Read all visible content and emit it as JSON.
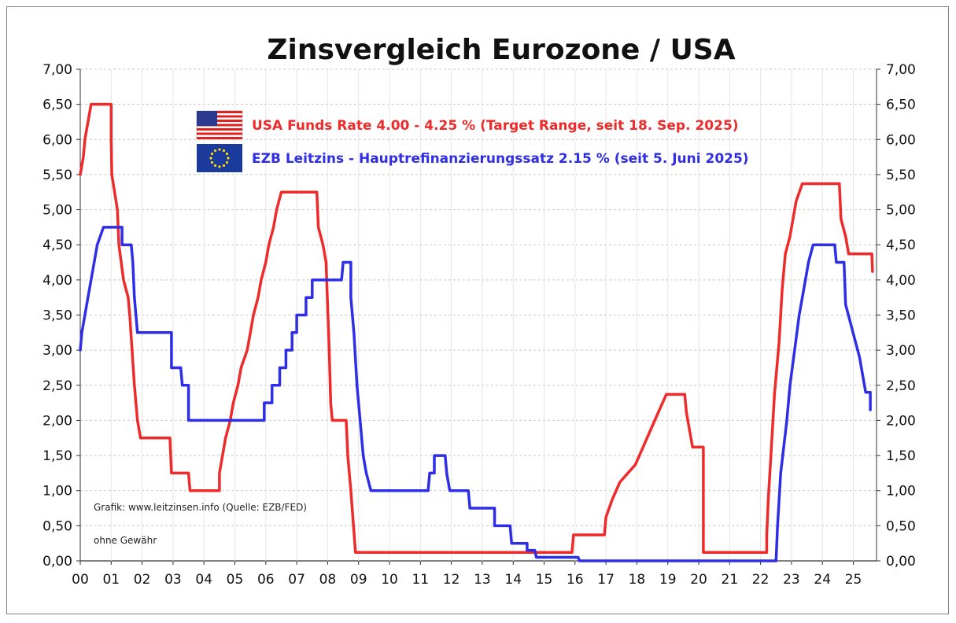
{
  "chart_data": {
    "type": "line",
    "title": "Zinsvergleich Eurozone / USA",
    "xlabel": "",
    "ylabel": "",
    "ylim": [
      0,
      7
    ],
    "xlim": [
      0,
      25.75
    ],
    "y_ticks": [
      "0,00",
      "0,50",
      "1,00",
      "1,50",
      "2,00",
      "2,50",
      "3,00",
      "3,50",
      "4,00",
      "4,50",
      "5,00",
      "5,50",
      "6,00",
      "6,50",
      "7,00"
    ],
    "x_ticks": [
      "00",
      "01",
      "02",
      "03",
      "04",
      "05",
      "06",
      "07",
      "08",
      "09",
      "10",
      "11",
      "12",
      "13",
      "14",
      "15",
      "16",
      "17",
      "18",
      "19",
      "20",
      "21",
      "22",
      "23",
      "24",
      "25"
    ],
    "grid": true,
    "legend_position": "top-center",
    "series": [
      {
        "name": "USA Funds Rate 4.00 - 4.25 % (Target Range, seit 18. Sep. 2025)",
        "color": "#ee2a2a",
        "icon": "us-flag-icon",
        "step_points": [
          [
            0.0,
            5.5
          ],
          [
            0.1,
            5.75
          ],
          [
            0.15,
            6.0
          ],
          [
            0.35,
            6.5
          ],
          [
            1.0,
            6.5
          ],
          [
            1.0,
            6.0
          ],
          [
            1.02,
            5.5
          ],
          [
            1.2,
            5.0
          ],
          [
            1.25,
            4.5
          ],
          [
            1.4,
            4.0
          ],
          [
            1.55,
            3.75
          ],
          [
            1.6,
            3.5
          ],
          [
            1.75,
            2.5
          ],
          [
            1.85,
            2.0
          ],
          [
            1.95,
            1.75
          ],
          [
            2.9,
            1.75
          ],
          [
            2.95,
            1.25
          ],
          [
            3.5,
            1.25
          ],
          [
            3.55,
            1.0
          ],
          [
            4.5,
            1.0
          ],
          [
            4.5,
            1.25
          ],
          [
            4.6,
            1.5
          ],
          [
            4.7,
            1.75
          ],
          [
            4.85,
            2.0
          ],
          [
            4.95,
            2.25
          ],
          [
            5.1,
            2.5
          ],
          [
            5.2,
            2.75
          ],
          [
            5.4,
            3.0
          ],
          [
            5.5,
            3.25
          ],
          [
            5.6,
            3.5
          ],
          [
            5.75,
            3.75
          ],
          [
            5.85,
            4.0
          ],
          [
            6.0,
            4.25
          ],
          [
            6.1,
            4.5
          ],
          [
            6.25,
            4.75
          ],
          [
            6.35,
            5.0
          ],
          [
            6.5,
            5.25
          ],
          [
            7.65,
            5.25
          ],
          [
            7.7,
            4.75
          ],
          [
            7.85,
            4.5
          ],
          [
            7.95,
            4.25
          ],
          [
            8.05,
            3.0
          ],
          [
            8.1,
            2.25
          ],
          [
            8.15,
            2.0
          ],
          [
            8.6,
            2.0
          ],
          [
            8.65,
            1.5
          ],
          [
            8.75,
            1.0
          ],
          [
            8.9,
            0.12
          ],
          [
            15.9,
            0.12
          ],
          [
            15.95,
            0.37
          ],
          [
            16.95,
            0.37
          ],
          [
            17.0,
            0.62
          ],
          [
            17.2,
            0.87
          ],
          [
            17.45,
            1.12
          ],
          [
            17.95,
            1.37
          ],
          [
            18.2,
            1.62
          ],
          [
            18.45,
            1.87
          ],
          [
            18.7,
            2.12
          ],
          [
            18.95,
            2.37
          ],
          [
            19.55,
            2.37
          ],
          [
            19.6,
            2.12
          ],
          [
            19.7,
            1.87
          ],
          [
            19.8,
            1.62
          ],
          [
            20.15,
            1.62
          ],
          [
            20.15,
            0.12
          ],
          [
            21.9,
            0.12
          ],
          [
            22.2,
            0.12
          ],
          [
            22.2,
            0.37
          ],
          [
            22.25,
            0.87
          ],
          [
            22.35,
            1.62
          ],
          [
            22.45,
            2.37
          ],
          [
            22.6,
            3.12
          ],
          [
            22.7,
            3.87
          ],
          [
            22.8,
            4.37
          ],
          [
            22.95,
            4.62
          ],
          [
            23.05,
            4.87
          ],
          [
            23.15,
            5.12
          ],
          [
            23.35,
            5.37
          ],
          [
            24.55,
            5.37
          ],
          [
            24.6,
            4.87
          ],
          [
            24.75,
            4.62
          ],
          [
            24.85,
            4.37
          ],
          [
            25.6,
            4.37
          ],
          [
            25.62,
            4.12
          ]
        ]
      },
      {
        "name": "EZB Leitzins - Hauptrefinanzierungssatz  2.15 % (seit 5. Juni 2025)",
        "color": "#2e2ee6",
        "icon": "eu-flag-icon",
        "step_points": [
          [
            0.0,
            3.0
          ],
          [
            0.05,
            3.25
          ],
          [
            0.15,
            3.5
          ],
          [
            0.25,
            3.75
          ],
          [
            0.45,
            4.25
          ],
          [
            0.55,
            4.5
          ],
          [
            0.75,
            4.75
          ],
          [
            1.35,
            4.75
          ],
          [
            1.35,
            4.5
          ],
          [
            1.65,
            4.5
          ],
          [
            1.7,
            4.25
          ],
          [
            1.75,
            3.75
          ],
          [
            1.85,
            3.25
          ],
          [
            2.95,
            3.25
          ],
          [
            2.95,
            2.75
          ],
          [
            3.25,
            2.75
          ],
          [
            3.3,
            2.5
          ],
          [
            3.5,
            2.5
          ],
          [
            3.5,
            2.0
          ],
          [
            5.95,
            2.0
          ],
          [
            5.95,
            2.25
          ],
          [
            6.2,
            2.25
          ],
          [
            6.2,
            2.5
          ],
          [
            6.45,
            2.5
          ],
          [
            6.45,
            2.75
          ],
          [
            6.65,
            2.75
          ],
          [
            6.65,
            3.0
          ],
          [
            6.85,
            3.0
          ],
          [
            6.85,
            3.25
          ],
          [
            7.0,
            3.25
          ],
          [
            7.0,
            3.5
          ],
          [
            7.3,
            3.5
          ],
          [
            7.3,
            3.75
          ],
          [
            7.5,
            3.75
          ],
          [
            7.5,
            4.0
          ],
          [
            8.45,
            4.0
          ],
          [
            8.5,
            4.25
          ],
          [
            8.75,
            4.25
          ],
          [
            8.75,
            3.75
          ],
          [
            8.85,
            3.25
          ],
          [
            8.95,
            2.5
          ],
          [
            9.05,
            2.0
          ],
          [
            9.15,
            1.5
          ],
          [
            9.25,
            1.25
          ],
          [
            9.4,
            1.0
          ],
          [
            11.25,
            1.0
          ],
          [
            11.3,
            1.25
          ],
          [
            11.45,
            1.25
          ],
          [
            11.45,
            1.5
          ],
          [
            11.8,
            1.5
          ],
          [
            11.85,
            1.25
          ],
          [
            11.95,
            1.0
          ],
          [
            12.55,
            1.0
          ],
          [
            12.6,
            0.75
          ],
          [
            13.4,
            0.75
          ],
          [
            13.4,
            0.5
          ],
          [
            13.9,
            0.5
          ],
          [
            13.95,
            0.25
          ],
          [
            14.45,
            0.25
          ],
          [
            14.45,
            0.15
          ],
          [
            14.7,
            0.15
          ],
          [
            14.75,
            0.05
          ],
          [
            16.1,
            0.05
          ],
          [
            16.15,
            0.0
          ],
          [
            22.5,
            0.0
          ],
          [
            22.55,
            0.5
          ],
          [
            22.65,
            1.25
          ],
          [
            22.85,
            2.0
          ],
          [
            22.95,
            2.5
          ],
          [
            23.1,
            3.0
          ],
          [
            23.25,
            3.5
          ],
          [
            23.35,
            3.75
          ],
          [
            23.45,
            4.0
          ],
          [
            23.55,
            4.25
          ],
          [
            23.7,
            4.5
          ],
          [
            24.4,
            4.5
          ],
          [
            24.45,
            4.25
          ],
          [
            24.7,
            4.25
          ],
          [
            24.75,
            3.65
          ],
          [
            24.9,
            3.4
          ],
          [
            25.05,
            3.15
          ],
          [
            25.2,
            2.9
          ],
          [
            25.3,
            2.65
          ],
          [
            25.4,
            2.4
          ],
          [
            25.55,
            2.4
          ],
          [
            25.55,
            2.15
          ]
        ]
      }
    ]
  },
  "annotations": {
    "source": "Grafik: www.leitzinsen.info (Quelle: EZB/FED)",
    "disclaimer": "ohne Gewähr"
  }
}
